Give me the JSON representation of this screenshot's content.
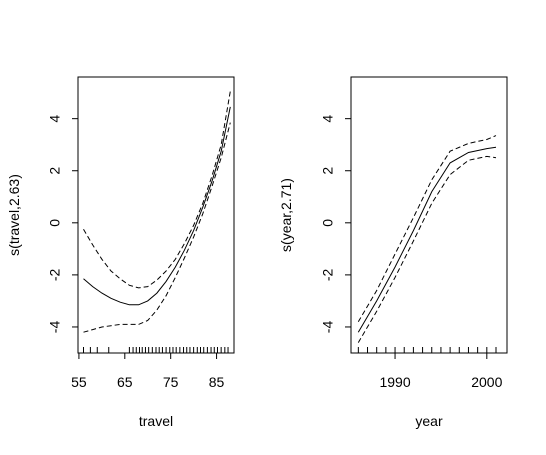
{
  "chart_data": [
    {
      "type": "line",
      "title": "",
      "xlabel": "travel",
      "ylabel": "s(travel,2.63)",
      "xlim": [
        54.8,
        88.8
      ],
      "ylim": [
        -5.0,
        5.6
      ],
      "xticks": [
        55,
        65,
        75,
        85
      ],
      "yticks": [
        -4,
        -2,
        0,
        2,
        4
      ],
      "grid": false,
      "series": [
        {
          "style": "solid",
          "x": [
            56,
            58,
            60,
            62,
            64,
            66,
            68,
            70,
            72,
            74,
            76,
            78,
            80,
            82,
            84,
            86,
            88
          ],
          "y": [
            -2.15,
            -2.45,
            -2.7,
            -2.9,
            -3.05,
            -3.15,
            -3.15,
            -3.0,
            -2.7,
            -2.25,
            -1.7,
            -1.05,
            -0.3,
            0.6,
            1.6,
            2.75,
            4.45
          ]
        },
        {
          "style": "dashed",
          "x": [
            56,
            58,
            60,
            62,
            64,
            66,
            68,
            70,
            72,
            74,
            76,
            78,
            80,
            82,
            84,
            86,
            88
          ],
          "y": [
            -0.25,
            -0.85,
            -1.4,
            -1.85,
            -2.15,
            -2.4,
            -2.5,
            -2.45,
            -2.2,
            -1.85,
            -1.4,
            -0.8,
            -0.1,
            0.75,
            1.8,
            3.0,
            5.05
          ]
        },
        {
          "style": "dashed",
          "x": [
            56,
            58,
            60,
            62,
            64,
            66,
            68,
            70,
            72,
            74,
            76,
            78,
            80,
            82,
            84,
            86,
            88
          ],
          "y": [
            -4.2,
            -4.1,
            -4.0,
            -3.95,
            -3.9,
            -3.9,
            -3.9,
            -3.75,
            -3.35,
            -2.8,
            -2.1,
            -1.35,
            -0.55,
            0.35,
            1.4,
            2.5,
            3.85
          ]
        }
      ],
      "rug": [
        56,
        57.5,
        59,
        61.5,
        66,
        66.8,
        67.5,
        68.2,
        68.8,
        69.5,
        70.2,
        71,
        71.8,
        72.5,
        73.2,
        74,
        74.8,
        75.5,
        76.2,
        77,
        77.8,
        78.5,
        79.2,
        80,
        80.8,
        81.5,
        82.2,
        83,
        83.8,
        84.5,
        85.2,
        86,
        86.8,
        87.5
      ]
    },
    {
      "type": "line",
      "title": "",
      "xlabel": "year",
      "ylabel": "s(year,2.71)",
      "xlim": [
        1985.2,
        2002.2
      ],
      "ylim": [
        -5.0,
        5.6
      ],
      "xticks": [
        1990,
        2000
      ],
      "yticks": [
        -4,
        -2,
        0,
        2,
        4
      ],
      "grid": false,
      "series": [
        {
          "style": "solid",
          "x": [
            1986,
            1988,
            1990,
            1992,
            1994,
            1996,
            1998,
            2000,
            2001
          ],
          "y": [
            -4.2,
            -3.0,
            -1.7,
            -0.3,
            1.2,
            2.3,
            2.7,
            2.85,
            2.9
          ]
        },
        {
          "style": "dashed",
          "x": [
            1986,
            1988,
            1990,
            1992,
            1994,
            1996,
            1998,
            2000,
            2001
          ],
          "y": [
            -3.8,
            -2.6,
            -1.2,
            0.2,
            1.65,
            2.75,
            3.05,
            3.2,
            3.35
          ]
        },
        {
          "style": "dashed",
          "x": [
            1986,
            1988,
            1990,
            1992,
            1994,
            1996,
            1998,
            2000,
            2001
          ],
          "y": [
            -4.6,
            -3.4,
            -2.1,
            -0.7,
            0.75,
            1.85,
            2.4,
            2.55,
            2.5
          ]
        }
      ],
      "rug": [
        1986,
        1987,
        1988,
        1989,
        1990,
        1991,
        1992,
        1993,
        1994,
        1995,
        1996,
        1997,
        1998,
        1999,
        2000,
        2001
      ]
    }
  ]
}
